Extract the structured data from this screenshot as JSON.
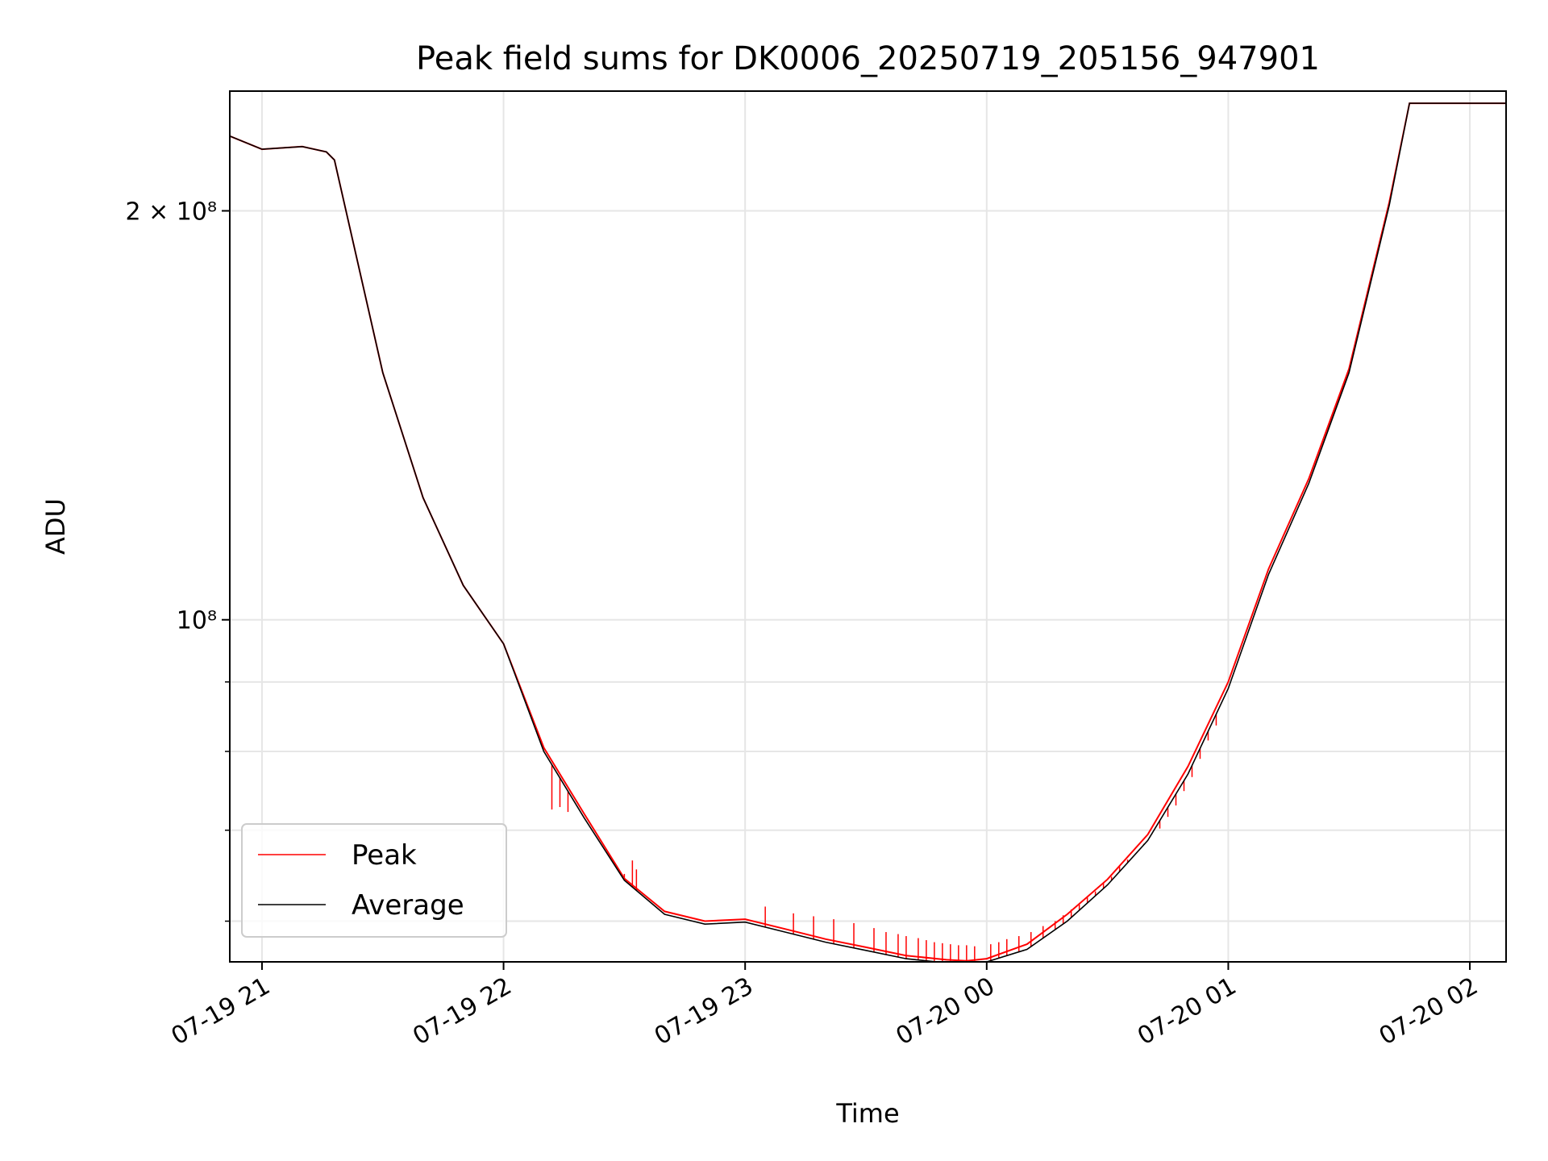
{
  "chart_data": {
    "type": "line",
    "title": "Peak field sums for DK0006_20250719_205156_947901",
    "xlabel": "Time",
    "ylabel": "ADU",
    "yscale": "log",
    "ylim": [
      56000000,
      245000000
    ],
    "xlim": [
      "2025-07-19 20:52",
      "2025-07-20 02:09"
    ],
    "grid": true,
    "legend_position": "lower-left",
    "x_tick_labels": [
      "07-19 21",
      "07-19 22",
      "07-19 23",
      "07-20 00",
      "07-20 01",
      "07-20 02"
    ],
    "x_ticks": [
      "2025-07-19 21:00",
      "2025-07-19 22:00",
      "2025-07-19 23:00",
      "2025-07-20 00:00",
      "2025-07-20 01:00",
      "2025-07-20 02:00"
    ],
    "y_tick_labels": [
      "2 × 10⁸",
      "10⁸"
    ],
    "y_ticks": [
      200000000,
      100000000
    ],
    "y_minor_ticks": [
      60000000,
      70000000,
      80000000,
      90000000
    ],
    "x": [
      "2025-07-19 20:52",
      "2025-07-19 21:00",
      "2025-07-19 21:10",
      "2025-07-19 21:16",
      "2025-07-19 21:18",
      "2025-07-19 21:30",
      "2025-07-19 21:40",
      "2025-07-19 21:50",
      "2025-07-19 22:00",
      "2025-07-19 22:10",
      "2025-07-19 22:20",
      "2025-07-19 22:30",
      "2025-07-19 22:40",
      "2025-07-19 22:50",
      "2025-07-19 23:00",
      "2025-07-19 23:10",
      "2025-07-19 23:20",
      "2025-07-19 23:30",
      "2025-07-19 23:40",
      "2025-07-19 23:50",
      "2025-07-19 23:55",
      "2025-07-20 00:00",
      "2025-07-20 00:10",
      "2025-07-20 00:20",
      "2025-07-20 00:30",
      "2025-07-20 00:40",
      "2025-07-20 00:50",
      "2025-07-20 01:00",
      "2025-07-20 01:10",
      "2025-07-20 01:20",
      "2025-07-20 01:30",
      "2025-07-20 01:40",
      "2025-07-20 01:45",
      "2025-07-20 02:09"
    ],
    "series": [
      {
        "name": "Peak",
        "color": "#ff0000",
        "values": [
          227000000,
          222000000,
          223000000,
          221000000,
          218000000,
          152000000,
          123000000,
          106000000,
          96000000,
          80500000,
          72000000,
          64500000,
          61000000,
          60000000,
          60200000,
          59200000,
          58200000,
          57400000,
          56600000,
          56200000,
          56100000,
          56300000,
          57700000,
          60700000,
          64400000,
          69500000,
          78000000,
          90000000,
          109000000,
          127000000,
          153000000,
          203000000,
          240000000,
          240000000
        ]
      },
      {
        "name": "Average",
        "color": "#000000",
        "values": [
          227000000,
          222000000,
          223000000,
          221000000,
          218000000,
          152000000,
          123000000,
          106000000,
          96000000,
          80000000,
          71500000,
          64300000,
          60700000,
          59700000,
          59900000,
          58900000,
          57900000,
          57100000,
          56300000,
          55900000,
          55800000,
          56000000,
          57200000,
          60000000,
          63800000,
          68800000,
          77000000,
          89000000,
          108000000,
          126000000,
          152000000,
          202000000,
          240000000,
          240000000
        ]
      }
    ],
    "peak_spikes": [
      [
        "2025-07-19 22:12",
        72500000
      ],
      [
        "2025-07-19 22:14",
        72800000
      ],
      [
        "2025-07-19 22:16",
        72200000
      ],
      [
        "2025-07-19 22:30",
        65000000
      ],
      [
        "2025-07-19 22:32",
        66500000
      ],
      [
        "2025-07-19 22:33",
        65500000
      ],
      [
        "2025-07-19 23:05",
        61500000
      ],
      [
        "2025-07-19 23:12",
        60800000
      ],
      [
        "2025-07-19 23:17",
        60500000
      ],
      [
        "2025-07-19 23:22",
        60200000
      ],
      [
        "2025-07-19 23:27",
        59800000
      ],
      [
        "2025-07-19 23:32",
        59300000
      ],
      [
        "2025-07-19 23:35",
        58900000
      ],
      [
        "2025-07-19 23:38",
        58700000
      ],
      [
        "2025-07-19 23:40",
        58500000
      ],
      [
        "2025-07-19 23:43",
        58300000
      ],
      [
        "2025-07-19 23:45",
        58100000
      ],
      [
        "2025-07-19 23:47",
        57900000
      ],
      [
        "2025-07-19 23:49",
        57800000
      ],
      [
        "2025-07-19 23:51",
        57700000
      ],
      [
        "2025-07-19 23:53",
        57600000
      ],
      [
        "2025-07-19 23:55",
        57600000
      ],
      [
        "2025-07-19 23:57",
        57500000
      ],
      [
        "2025-07-20 00:01",
        57700000
      ],
      [
        "2025-07-20 00:03",
        57900000
      ],
      [
        "2025-07-20 00:05",
        58200000
      ],
      [
        "2025-07-20 00:08",
        58500000
      ],
      [
        "2025-07-20 00:11",
        58900000
      ],
      [
        "2025-07-20 00:14",
        59500000
      ],
      [
        "2025-07-20 00:17",
        60000000
      ],
      [
        "2025-07-20 00:19",
        60600000
      ],
      [
        "2025-07-20 00:21",
        61200000
      ],
      [
        "2025-07-20 00:23",
        61700000
      ],
      [
        "2025-07-20 00:25",
        62500000
      ],
      [
        "2025-07-20 00:27",
        63100000
      ],
      [
        "2025-07-20 00:29",
        64000000
      ],
      [
        "2025-07-20 00:31",
        64700000
      ],
      [
        "2025-07-20 00:33",
        65800000
      ],
      [
        "2025-07-20 00:35",
        66600000
      ],
      [
        "2025-07-20 00:37",
        67300000
      ],
      [
        "2025-07-20 00:39",
        68400000
      ],
      [
        "2025-07-20 00:41",
        69500000
      ],
      [
        "2025-07-20 00:43",
        70200000
      ],
      [
        "2025-07-20 00:45",
        71600000
      ],
      [
        "2025-07-20 00:47",
        73000000
      ],
      [
        "2025-07-20 00:49",
        74800000
      ],
      [
        "2025-07-20 00:51",
        76600000
      ],
      [
        "2025-07-20 00:53",
        79000000
      ],
      [
        "2025-07-20 00:55",
        81500000
      ],
      [
        "2025-07-20 00:57",
        83600000
      ]
    ]
  }
}
